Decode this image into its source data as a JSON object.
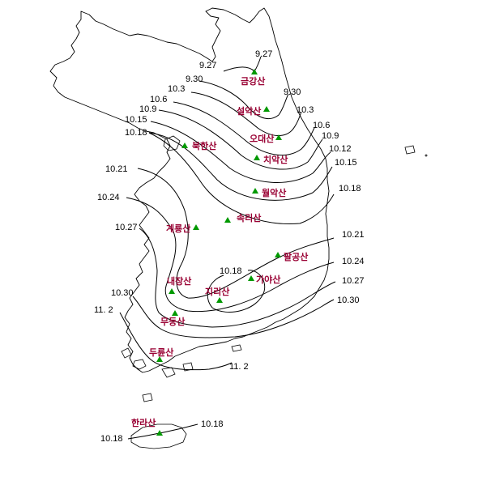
{
  "colors": {
    "mountain_label": "#990033",
    "marker": "#009900",
    "line": "#000000"
  },
  "mountains": [
    {
      "id": "geumgang",
      "name": "금강산",
      "icon": "green-triangle-icon"
    },
    {
      "id": "seorak",
      "name": "설악산",
      "icon": "green-triangle-icon"
    },
    {
      "id": "odae",
      "name": "오대산",
      "icon": "green-triangle-icon"
    },
    {
      "id": "chiak",
      "name": "치악산",
      "icon": "green-triangle-icon"
    },
    {
      "id": "bukhan",
      "name": "북한산",
      "icon": "green-triangle-icon"
    },
    {
      "id": "woraks",
      "name": "월악산",
      "icon": "green-triangle-icon"
    },
    {
      "id": "songni",
      "name": "속리산",
      "icon": "green-triangle-icon"
    },
    {
      "id": "gyeryong",
      "name": "계룡산",
      "icon": "green-triangle-icon"
    },
    {
      "id": "palgong",
      "name": "팔공산",
      "icon": "green-triangle-icon"
    },
    {
      "id": "gaya",
      "name": "가야산",
      "icon": "green-triangle-icon"
    },
    {
      "id": "naejang",
      "name": "내장산",
      "icon": "green-triangle-icon"
    },
    {
      "id": "jiri",
      "name": "지리산",
      "icon": "green-triangle-icon"
    },
    {
      "id": "mudeung",
      "name": "무등산",
      "icon": "green-triangle-icon"
    },
    {
      "id": "duryun",
      "name": "두륜산",
      "icon": "green-triangle-icon"
    },
    {
      "id": "halla",
      "name": "한라산",
      "icon": "green-triangle-icon"
    }
  ],
  "isoline_labels": [
    "9.27",
    "9.27",
    "9.30",
    "9.30",
    "10.3",
    "10.3",
    "10.6",
    "10.6",
    "10.9",
    "10.9",
    "10.15",
    "10.12",
    "10.18",
    "10.15",
    "10.21",
    "10.18",
    "10.24",
    "10.21",
    "10.27",
    "10.24",
    "10.30",
    "10.27",
    "11. 2",
    "10.30",
    "10.18",
    "11. 2",
    "10.18",
    "10.18"
  ]
}
